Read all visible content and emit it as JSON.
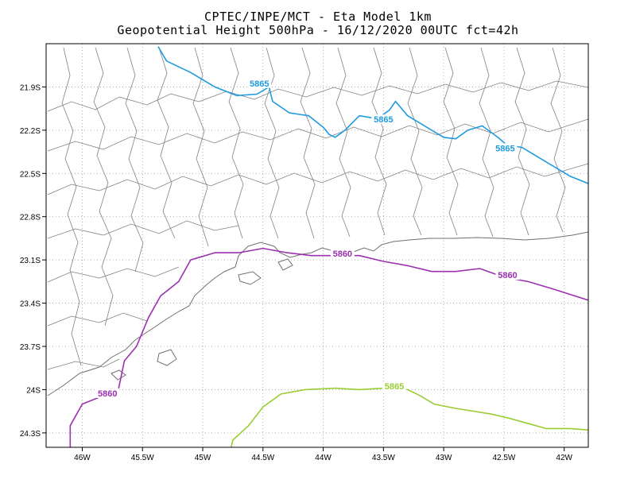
{
  "title_line1": "CPTEC/INPE/MCT -  Eta Model 1km",
  "title_line2": "Geopotential Height 500hPa - 16/12/2020 00UTC fct=42h",
  "map": {
    "lon_range": [
      -46.3,
      -41.8
    ],
    "lat_range": [
      -24.4,
      -21.6
    ],
    "lon_ticks": [
      {
        "value": -46.0,
        "label": "46W"
      },
      {
        "value": -45.5,
        "label": "45.5W"
      },
      {
        "value": -45.0,
        "label": "45W"
      },
      {
        "value": -44.5,
        "label": "44.5W"
      },
      {
        "value": -44.0,
        "label": "44W"
      },
      {
        "value": -43.5,
        "label": "43.5W"
      },
      {
        "value": -43.0,
        "label": "43W"
      },
      {
        "value": -42.5,
        "label": "42.5W"
      },
      {
        "value": -42.0,
        "label": "42W"
      }
    ],
    "lat_ticks": [
      {
        "value": -21.9,
        "label": "21.9S"
      },
      {
        "value": -22.2,
        "label": "22.2S"
      },
      {
        "value": -22.5,
        "label": "22.5S"
      },
      {
        "value": -22.8,
        "label": "22.8S"
      },
      {
        "value": -23.1,
        "label": "23.1S"
      },
      {
        "value": -23.4,
        "label": "23.4S"
      },
      {
        "value": -23.7,
        "label": "23.7S"
      },
      {
        "value": -24.0,
        "label": "24S"
      },
      {
        "value": -24.3,
        "label": "24.3S"
      }
    ],
    "grid": "dotted",
    "boundary_color": "#808080",
    "contours": [
      {
        "value": "5865",
        "color": "#1e9be0",
        "points": [
          [
            -45.37,
            -21.62
          ],
          [
            -45.3,
            -21.72
          ],
          [
            -45.1,
            -21.8
          ],
          [
            -44.9,
            -21.9
          ],
          [
            -44.72,
            -21.96
          ],
          [
            -44.55,
            -21.95
          ],
          [
            -44.45,
            -21.9
          ],
          [
            -44.42,
            -22.0
          ],
          [
            -44.28,
            -22.08
          ],
          [
            -44.12,
            -22.1
          ],
          [
            -44.0,
            -22.18
          ],
          [
            -43.95,
            -22.23
          ],
          [
            -43.9,
            -22.25
          ],
          [
            -43.82,
            -22.2
          ],
          [
            -43.7,
            -22.1
          ],
          [
            -43.55,
            -22.12
          ],
          [
            -43.45,
            -22.06
          ],
          [
            -43.4,
            -22.0
          ],
          [
            -43.3,
            -22.1
          ],
          [
            -43.18,
            -22.16
          ],
          [
            -43.0,
            -22.25
          ],
          [
            -42.9,
            -22.26
          ],
          [
            -42.8,
            -22.2
          ],
          [
            -42.68,
            -22.17
          ],
          [
            -42.55,
            -22.25
          ],
          [
            -42.48,
            -22.3
          ],
          [
            -42.35,
            -22.32
          ],
          [
            -42.15,
            -22.42
          ],
          [
            -41.95,
            -22.52
          ],
          [
            -41.8,
            -22.57
          ]
        ],
        "labels": [
          [
            -44.53,
            -21.88
          ],
          [
            -43.5,
            -22.13
          ],
          [
            -42.49,
            -22.33
          ]
        ]
      },
      {
        "value": "5860",
        "color": "#9b30b0",
        "points": [
          [
            -46.1,
            -24.45
          ],
          [
            -46.1,
            -24.25
          ],
          [
            -46.0,
            -24.1
          ],
          [
            -45.85,
            -24.05
          ],
          [
            -45.7,
            -24.0
          ],
          [
            -45.65,
            -23.8
          ],
          [
            -45.55,
            -23.7
          ],
          [
            -45.45,
            -23.5
          ],
          [
            -45.35,
            -23.35
          ],
          [
            -45.2,
            -23.25
          ],
          [
            -45.1,
            -23.1
          ],
          [
            -44.9,
            -23.05
          ],
          [
            -44.7,
            -23.05
          ],
          [
            -44.5,
            -23.02
          ],
          [
            -44.3,
            -23.05
          ],
          [
            -44.1,
            -23.07
          ],
          [
            -43.9,
            -23.07
          ],
          [
            -43.7,
            -23.07
          ],
          [
            -43.5,
            -23.11
          ],
          [
            -43.3,
            -23.14
          ],
          [
            -43.1,
            -23.18
          ],
          [
            -42.9,
            -23.18
          ],
          [
            -42.7,
            -23.16
          ],
          [
            -42.5,
            -23.22
          ],
          [
            -42.3,
            -23.25
          ],
          [
            -42.1,
            -23.3
          ],
          [
            -41.8,
            -23.38
          ]
        ],
        "labels": [
          [
            -43.84,
            -23.06
          ],
          [
            -42.47,
            -23.21
          ],
          [
            -45.79,
            -24.03
          ]
        ]
      },
      {
        "value": "5865",
        "color": "#9acd32",
        "points": [
          [
            -44.78,
            -24.45
          ],
          [
            -44.75,
            -24.35
          ],
          [
            -44.62,
            -24.25
          ],
          [
            -44.5,
            -24.12
          ],
          [
            -44.35,
            -24.03
          ],
          [
            -44.15,
            -24.0
          ],
          [
            -43.9,
            -23.99
          ],
          [
            -43.7,
            -24.0
          ],
          [
            -43.5,
            -23.99
          ],
          [
            -43.3,
            -24.0
          ],
          [
            -43.2,
            -24.04
          ],
          [
            -43.08,
            -24.1
          ],
          [
            -42.9,
            -24.13
          ],
          [
            -42.6,
            -24.17
          ],
          [
            -42.45,
            -24.2
          ],
          [
            -42.15,
            -24.27
          ],
          [
            -41.95,
            -24.27
          ],
          [
            -41.8,
            -24.28
          ]
        ],
        "labels": [
          [
            -43.41,
            -23.98
          ]
        ]
      }
    ]
  }
}
